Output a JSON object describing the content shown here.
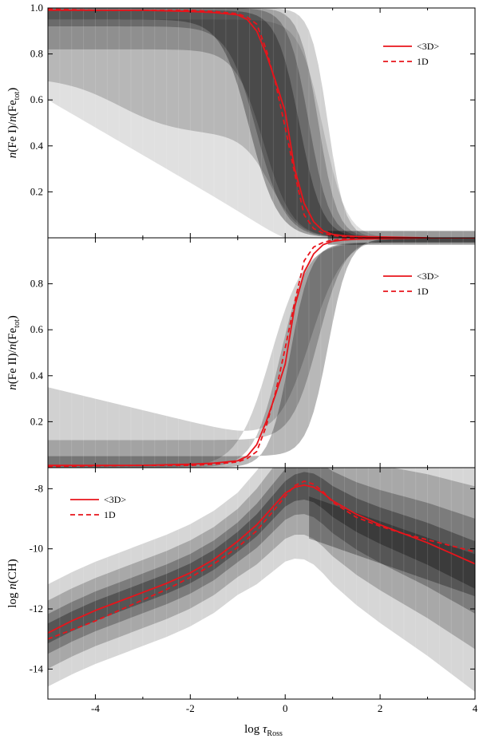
{
  "colors": {
    "model": "#e8141b",
    "frame": "#000000"
  },
  "x_axis": {
    "label_main": "log ",
    "label_tau": "τ",
    "label_sub": "Ross",
    "range": [
      -5,
      4
    ],
    "ticks": [
      -4,
      -2,
      0,
      2,
      4
    ],
    "tick_labels": [
      "-4",
      "-2",
      "0",
      "2",
      "4"
    ]
  },
  "chart_data": [
    {
      "type": "line",
      "panel": "Fe I fraction",
      "ylabel_pre": "n(Fe I)/n(Fe",
      "ylabel_sub": "tot",
      "ylabel_post": ")",
      "ylim": [
        0.0,
        1.0
      ],
      "yticks": [
        0.2,
        0.4,
        0.6,
        0.8,
        1.0
      ],
      "ytick_labels": [
        "0.2",
        "0.4",
        "0.6",
        "0.8",
        "1.0"
      ],
      "legend": {
        "position": "top-right",
        "entries": [
          "<3D>",
          "1D"
        ]
      },
      "background": "grey-scale density of 3D model values",
      "series": [
        {
          "name": "<3D>",
          "style": "solid",
          "x": [
            -5,
            -4,
            -3,
            -2,
            -1.5,
            -1,
            -0.8,
            -0.6,
            -0.4,
            -0.2,
            0,
            0.2,
            0.4,
            0.6,
            0.8,
            1.0,
            1.2,
            1.5,
            2,
            3,
            4
          ],
          "y": [
            0.99,
            0.99,
            0.99,
            0.985,
            0.98,
            0.97,
            0.95,
            0.9,
            0.8,
            0.68,
            0.55,
            0.3,
            0.15,
            0.07,
            0.03,
            0.015,
            0.01,
            0.006,
            0.004,
            0.0,
            -0.02
          ]
        },
        {
          "name": "1D",
          "style": "dashed",
          "x": [
            -5,
            -4,
            -3,
            -2,
            -1.5,
            -1,
            -0.8,
            -0.6,
            -0.4,
            -0.2,
            0,
            0.2,
            0.4,
            0.6,
            0.8,
            1.0,
            1.2,
            1.5,
            2,
            3,
            4
          ],
          "y": [
            0.995,
            0.99,
            0.99,
            0.99,
            0.985,
            0.975,
            0.96,
            0.93,
            0.82,
            0.67,
            0.48,
            0.28,
            0.1,
            0.04,
            0.02,
            0.01,
            0.006,
            0.004,
            0.003,
            -0.002,
            -0.015
          ]
        }
      ]
    },
    {
      "type": "line",
      "panel": "Fe II fraction",
      "ylabel_pre": "n(Fe II)/n(Fe",
      "ylabel_sub": "tot",
      "ylabel_post": ")",
      "ylim": [
        0.0,
        1.0
      ],
      "yticks": [
        0.2,
        0.4,
        0.6,
        0.8
      ],
      "ytick_labels": [
        "0.2",
        "0.4",
        "0.6",
        "0.8"
      ],
      "legend": {
        "position": "top-right",
        "entries": [
          "<3D>",
          "1D"
        ]
      },
      "background": "grey-scale density of 3D model values",
      "series": [
        {
          "name": "<3D>",
          "style": "solid",
          "x": [
            -5,
            -4,
            -3,
            -2,
            -1.5,
            -1,
            -0.8,
            -0.6,
            -0.4,
            -0.2,
            0,
            0.2,
            0.4,
            0.6,
            0.8,
            1.0,
            1.2,
            1.5,
            2,
            3,
            4
          ],
          "y": [
            0.01,
            0.01,
            0.01,
            0.015,
            0.02,
            0.03,
            0.05,
            0.1,
            0.2,
            0.32,
            0.45,
            0.7,
            0.85,
            0.93,
            0.97,
            0.985,
            0.99,
            0.994,
            0.996,
            1.0,
            1.0
          ]
        },
        {
          "name": "1D",
          "style": "dashed",
          "x": [
            -5,
            -4,
            -3,
            -2,
            -1.5,
            -1,
            -0.8,
            -0.6,
            -0.4,
            -0.2,
            0,
            0.2,
            0.4,
            0.6,
            0.8,
            1.0,
            1.2,
            1.5,
            2,
            3,
            4
          ],
          "y": [
            0.005,
            0.008,
            0.01,
            0.01,
            0.015,
            0.025,
            0.04,
            0.07,
            0.18,
            0.33,
            0.52,
            0.72,
            0.9,
            0.96,
            0.98,
            0.99,
            0.994,
            0.996,
            0.997,
            1.0,
            1.0
          ]
        }
      ]
    },
    {
      "type": "line",
      "panel": "CH number density",
      "ylabel": "log n(CH)",
      "ylim": [
        -15,
        -7.3
      ],
      "yticks": [
        -14,
        -12,
        -10,
        -8
      ],
      "ytick_labels": [
        "-14",
        "-12",
        "-10",
        "-8"
      ],
      "legend": {
        "position": "top-left",
        "entries": [
          "<3D>",
          "1D"
        ]
      },
      "background": "grey-scale density of 3D model values",
      "series": [
        {
          "name": "<3D>",
          "style": "solid",
          "x": [
            -5,
            -4.5,
            -4,
            -3.5,
            -3,
            -2.5,
            -2,
            -1.5,
            -1,
            -0.6,
            -0.2,
            0,
            0.2,
            0.4,
            0.6,
            0.8,
            1.0,
            1.5,
            2,
            2.5,
            3,
            3.5,
            4
          ],
          "y": [
            -12.8,
            -12.4,
            -12.05,
            -11.75,
            -11.45,
            -11.15,
            -10.8,
            -10.35,
            -9.75,
            -9.2,
            -8.5,
            -8.15,
            -7.95,
            -7.88,
            -7.95,
            -8.15,
            -8.4,
            -8.85,
            -9.2,
            -9.5,
            -9.8,
            -10.15,
            -10.5
          ]
        },
        {
          "name": "1D",
          "style": "dashed",
          "x": [
            -5,
            -4.5,
            -4,
            -3.5,
            -3,
            -2.5,
            -2,
            -1.5,
            -1,
            -0.6,
            -0.2,
            0,
            0.2,
            0.4,
            0.6,
            0.8,
            1.0,
            1.5,
            2,
            2.5,
            3,
            3.5,
            4
          ],
          "y": [
            -13.0,
            -12.7,
            -12.4,
            -12.05,
            -11.7,
            -11.35,
            -10.95,
            -10.5,
            -9.95,
            -9.4,
            -8.65,
            -8.25,
            -7.9,
            -7.75,
            -7.85,
            -8.1,
            -8.45,
            -8.95,
            -9.25,
            -9.5,
            -9.7,
            -9.9,
            -10.1
          ]
        }
      ]
    }
  ]
}
